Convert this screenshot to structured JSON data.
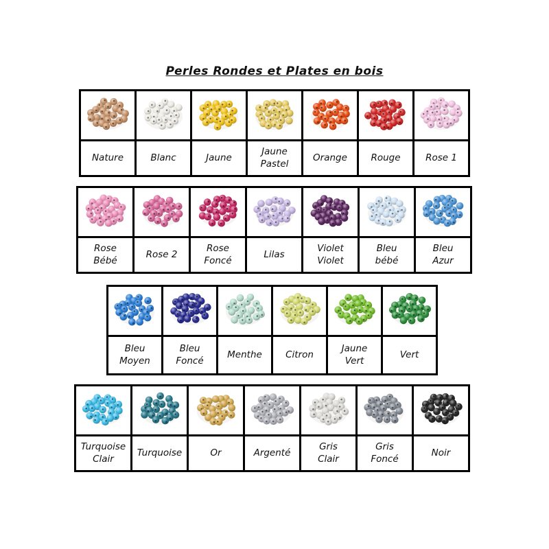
{
  "title": "Perles Rondes et Plates en bois",
  "tables": [
    {
      "name": "table-1",
      "columns": [
        {
          "id": "nature",
          "lines": [
            "Nature"
          ],
          "color": "#c6936a"
        },
        {
          "id": "blanc",
          "lines": [
            "Blanc"
          ],
          "color": "#edebe4"
        },
        {
          "id": "jaune",
          "lines": [
            "Jaune"
          ],
          "color": "#f1c41f"
        },
        {
          "id": "jaune-pastel",
          "lines": [
            "Jaune",
            "Pastel"
          ],
          "color": "#e6cb63"
        },
        {
          "id": "orange",
          "lines": [
            "Orange"
          ],
          "color": "#e94f15"
        },
        {
          "id": "rouge",
          "lines": [
            "Rouge"
          ],
          "color": "#d32a2a"
        },
        {
          "id": "rose-1",
          "lines": [
            "Rose 1"
          ],
          "color": "#f3c4e1"
        }
      ]
    },
    {
      "name": "table-2",
      "columns": [
        {
          "id": "rose-bebe",
          "lines": [
            "Rose",
            "Bébé"
          ],
          "color": "#ee93bc"
        },
        {
          "id": "rose-2",
          "lines": [
            "Rose 2"
          ],
          "color": "#d9699b"
        },
        {
          "id": "rose-fonce",
          "lines": [
            "Rose",
            "Foncé"
          ],
          "color": "#c72a66"
        },
        {
          "id": "lilas",
          "lines": [
            "Lilas"
          ],
          "color": "#c8b8e4"
        },
        {
          "id": "violet-violet",
          "lines": [
            "Violet",
            "Violet"
          ],
          "color": "#5e2a63"
        },
        {
          "id": "bleu-bebe",
          "lines": [
            "Bleu",
            "bébé"
          ],
          "color": "#cfe1f2"
        },
        {
          "id": "bleu-azur",
          "lines": [
            "Bleu",
            "Azur"
          ],
          "color": "#4f97d8"
        }
      ]
    },
    {
      "name": "table-3",
      "columns": [
        {
          "id": "bleu-moyen",
          "lines": [
            "Bleu",
            "Moyen"
          ],
          "color": "#2f80d8"
        },
        {
          "id": "bleu-fonce",
          "lines": [
            "Bleu",
            "Foncé"
          ],
          "color": "#2c2f92"
        },
        {
          "id": "menthe",
          "lines": [
            "Menthe"
          ],
          "color": "#b5dccd"
        },
        {
          "id": "citron",
          "lines": [
            "Citron"
          ],
          "color": "#d3d972"
        },
        {
          "id": "jaune-vert",
          "lines": [
            "Jaune",
            "Vert"
          ],
          "color": "#77bf2f"
        },
        {
          "id": "vert",
          "lines": [
            "Vert"
          ],
          "color": "#2f8f3e"
        }
      ]
    },
    {
      "name": "table-4",
      "columns": [
        {
          "id": "turquoise-clair",
          "lines": [
            "Turquoise",
            "Clair"
          ],
          "color": "#3fbde8"
        },
        {
          "id": "turquoise",
          "lines": [
            "Turquoise"
          ],
          "color": "#2a7a8c"
        },
        {
          "id": "or",
          "lines": [
            "Or"
          ],
          "color": "#d2a951"
        },
        {
          "id": "argente",
          "lines": [
            "Argenté"
          ],
          "color": "#b3b3bb"
        },
        {
          "id": "gris-clair",
          "lines": [
            "Gris",
            "Clair"
          ],
          "color": "#dcdbd7"
        },
        {
          "id": "gris-fonce",
          "lines": [
            "Gris",
            "Foncé"
          ],
          "color": "#858b95"
        },
        {
          "id": "noir",
          "lines": [
            "Noir"
          ],
          "color": "#282828"
        }
      ]
    }
  ]
}
